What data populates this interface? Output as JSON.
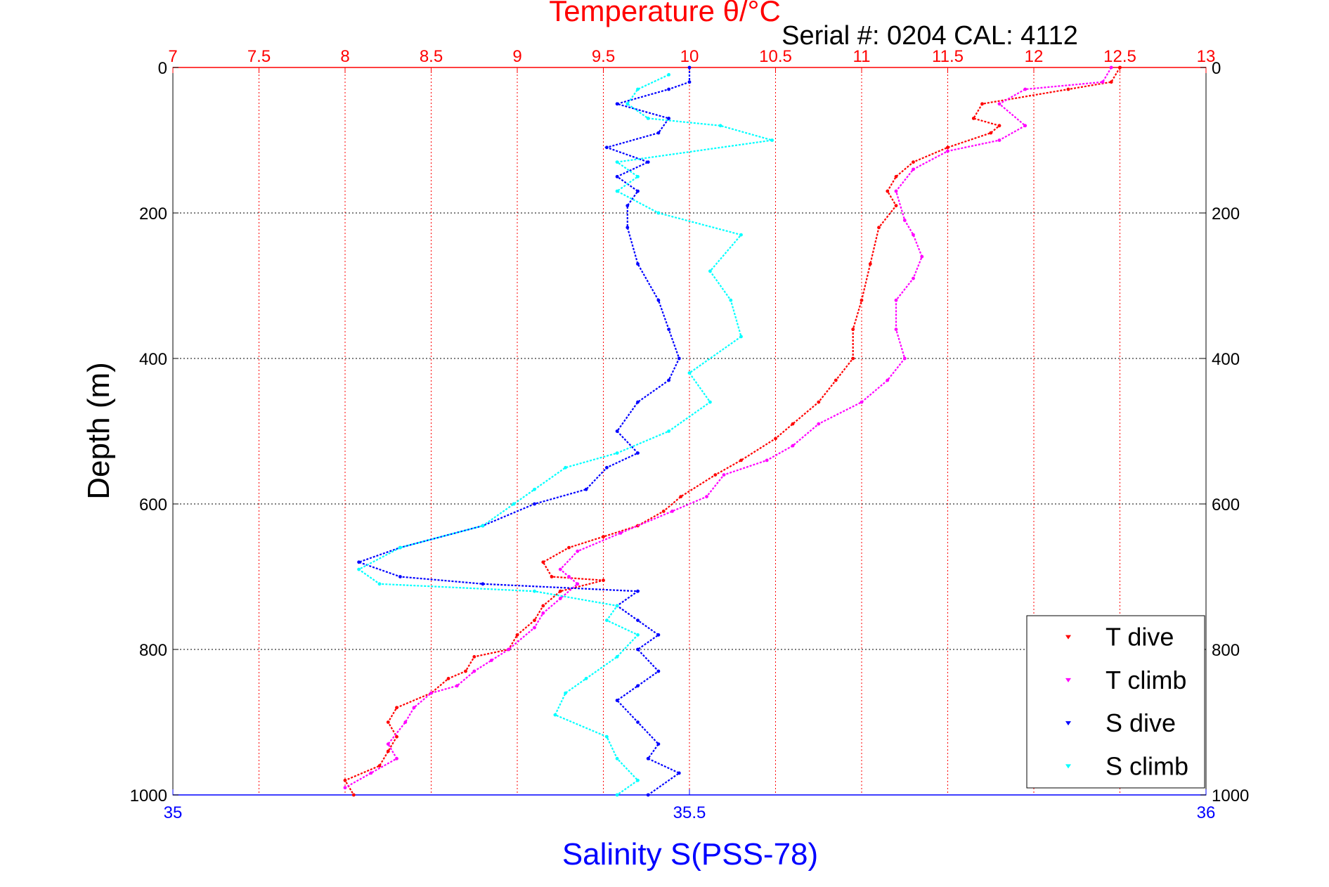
{
  "chart_data": {
    "type": "scatter",
    "title": "Temperature θ/°C",
    "subtitle": "Serial #: 0204  CAL: 4112",
    "ylabel": "Depth (m)",
    "xlabel_bottom": "Salinity S(PSS-78)",
    "ylim": [
      1000,
      0
    ],
    "y_ticks": [
      "0",
      "200",
      "400",
      "600",
      "800",
      "1000"
    ],
    "x_top": {
      "label": "Temperature θ/°C",
      "lim": [
        7,
        13
      ],
      "ticks": [
        "7",
        "7.5",
        "8",
        "8.5",
        "9",
        "9.5",
        "10",
        "10.5",
        "11",
        "11.5",
        "12",
        "12.5",
        "13"
      ]
    },
    "x_bottom": {
      "label": "Salinity S(PSS-78)",
      "lim": [
        35,
        36
      ],
      "ticks": [
        "35",
        "35.5",
        "36"
      ]
    },
    "grid": true,
    "legend_position": "bottom-right",
    "colors": {
      "t_dive": "#ff0000",
      "t_climb": "#ff00ff",
      "s_dive": "#0000ff",
      "s_climb": "#00ffff",
      "top_axis": "#ff0000",
      "bottom_axis": "#0000ff"
    },
    "series": [
      {
        "name": "T dive",
        "axis": "temperature",
        "color": "#ff0000",
        "points": [
          [
            12.5,
            0
          ],
          [
            12.45,
            20
          ],
          [
            12.2,
            30
          ],
          [
            11.7,
            50
          ],
          [
            11.65,
            70
          ],
          [
            11.8,
            80
          ],
          [
            11.75,
            90
          ],
          [
            11.5,
            110
          ],
          [
            11.3,
            130
          ],
          [
            11.2,
            150
          ],
          [
            11.15,
            170
          ],
          [
            11.2,
            190
          ],
          [
            11.1,
            220
          ],
          [
            11.05,
            270
          ],
          [
            11.0,
            320
          ],
          [
            10.95,
            360
          ],
          [
            10.95,
            400
          ],
          [
            10.85,
            430
          ],
          [
            10.75,
            460
          ],
          [
            10.6,
            490
          ],
          [
            10.5,
            510
          ],
          [
            10.3,
            540
          ],
          [
            10.15,
            560
          ],
          [
            9.95,
            590
          ],
          [
            9.85,
            610
          ],
          [
            9.7,
            630
          ],
          [
            9.5,
            645
          ],
          [
            9.3,
            660
          ],
          [
            9.15,
            680
          ],
          [
            9.2,
            700
          ],
          [
            9.5,
            705
          ],
          [
            9.25,
            720
          ],
          [
            9.15,
            740
          ],
          [
            9.1,
            760
          ],
          [
            9.0,
            780
          ],
          [
            8.95,
            800
          ],
          [
            8.75,
            810
          ],
          [
            8.7,
            830
          ],
          [
            8.6,
            840
          ],
          [
            8.5,
            860
          ],
          [
            8.3,
            880
          ],
          [
            8.25,
            900
          ],
          [
            8.3,
            920
          ],
          [
            8.25,
            940
          ],
          [
            8.2,
            960
          ],
          [
            8.0,
            980
          ],
          [
            8.05,
            1000
          ]
        ]
      },
      {
        "name": "T climb",
        "axis": "temperature",
        "color": "#ff00ff",
        "points": [
          [
            12.45,
            0
          ],
          [
            12.4,
            20
          ],
          [
            11.95,
            30
          ],
          [
            11.8,
            50
          ],
          [
            11.95,
            80
          ],
          [
            11.8,
            100
          ],
          [
            11.5,
            115
          ],
          [
            11.3,
            140
          ],
          [
            11.2,
            170
          ],
          [
            11.25,
            210
          ],
          [
            11.3,
            230
          ],
          [
            11.35,
            260
          ],
          [
            11.3,
            290
          ],
          [
            11.2,
            320
          ],
          [
            11.2,
            360
          ],
          [
            11.25,
            400
          ],
          [
            11.15,
            430
          ],
          [
            11.0,
            460
          ],
          [
            10.75,
            490
          ],
          [
            10.6,
            520
          ],
          [
            10.45,
            540
          ],
          [
            10.2,
            560
          ],
          [
            10.1,
            590
          ],
          [
            9.9,
            610
          ],
          [
            9.6,
            640
          ],
          [
            9.35,
            665
          ],
          [
            9.25,
            690
          ],
          [
            9.3,
            700
          ],
          [
            9.35,
            710
          ],
          [
            9.25,
            730
          ],
          [
            9.15,
            750
          ],
          [
            9.1,
            770
          ],
          [
            8.95,
            800
          ],
          [
            8.85,
            815
          ],
          [
            8.75,
            830
          ],
          [
            8.65,
            850
          ],
          [
            8.5,
            860
          ],
          [
            8.4,
            880
          ],
          [
            8.35,
            900
          ],
          [
            8.25,
            930
          ],
          [
            8.3,
            950
          ],
          [
            8.15,
            970
          ],
          [
            8.0,
            990
          ]
        ]
      },
      {
        "name": "S dive",
        "axis": "salinity",
        "color": "#0000ff",
        "points": [
          [
            35.5,
            0
          ],
          [
            35.5,
            20
          ],
          [
            35.48,
            30
          ],
          [
            35.43,
            50
          ],
          [
            35.48,
            70
          ],
          [
            35.47,
            90
          ],
          [
            35.42,
            110
          ],
          [
            35.46,
            130
          ],
          [
            35.43,
            150
          ],
          [
            35.45,
            170
          ],
          [
            35.44,
            190
          ],
          [
            35.44,
            220
          ],
          [
            35.45,
            270
          ],
          [
            35.47,
            320
          ],
          [
            35.48,
            360
          ],
          [
            35.49,
            400
          ],
          [
            35.48,
            430
          ],
          [
            35.45,
            460
          ],
          [
            35.43,
            500
          ],
          [
            35.45,
            530
          ],
          [
            35.42,
            550
          ],
          [
            35.4,
            580
          ],
          [
            35.35,
            600
          ],
          [
            35.3,
            630
          ],
          [
            35.22,
            660
          ],
          [
            35.18,
            680
          ],
          [
            35.22,
            700
          ],
          [
            35.3,
            710
          ],
          [
            35.45,
            720
          ],
          [
            35.43,
            740
          ],
          [
            35.45,
            760
          ],
          [
            35.47,
            780
          ],
          [
            35.45,
            800
          ],
          [
            35.47,
            830
          ],
          [
            35.45,
            850
          ],
          [
            35.43,
            870
          ],
          [
            35.45,
            900
          ],
          [
            35.47,
            930
          ],
          [
            35.46,
            950
          ],
          [
            35.49,
            970
          ],
          [
            35.46,
            1000
          ]
        ]
      },
      {
        "name": "S climb",
        "axis": "salinity",
        "color": "#00ffff",
        "points": [
          [
            35.48,
            10
          ],
          [
            35.45,
            30
          ],
          [
            35.44,
            50
          ],
          [
            35.46,
            70
          ],
          [
            35.53,
            80
          ],
          [
            35.58,
            100
          ],
          [
            35.43,
            130
          ],
          [
            35.45,
            150
          ],
          [
            35.43,
            170
          ],
          [
            35.47,
            200
          ],
          [
            35.55,
            230
          ],
          [
            35.52,
            280
          ],
          [
            35.54,
            320
          ],
          [
            35.55,
            370
          ],
          [
            35.5,
            420
          ],
          [
            35.52,
            460
          ],
          [
            35.48,
            500
          ],
          [
            35.43,
            530
          ],
          [
            35.38,
            550
          ],
          [
            35.35,
            580
          ],
          [
            35.33,
            600
          ],
          [
            35.3,
            630
          ],
          [
            35.22,
            660
          ],
          [
            35.18,
            690
          ],
          [
            35.2,
            710
          ],
          [
            35.35,
            720
          ],
          [
            35.43,
            740
          ],
          [
            35.42,
            760
          ],
          [
            35.45,
            780
          ],
          [
            35.43,
            810
          ],
          [
            35.4,
            840
          ],
          [
            35.38,
            860
          ],
          [
            35.37,
            890
          ],
          [
            35.42,
            920
          ],
          [
            35.43,
            950
          ],
          [
            35.45,
            980
          ],
          [
            35.43,
            1000
          ]
        ]
      }
    ]
  }
}
